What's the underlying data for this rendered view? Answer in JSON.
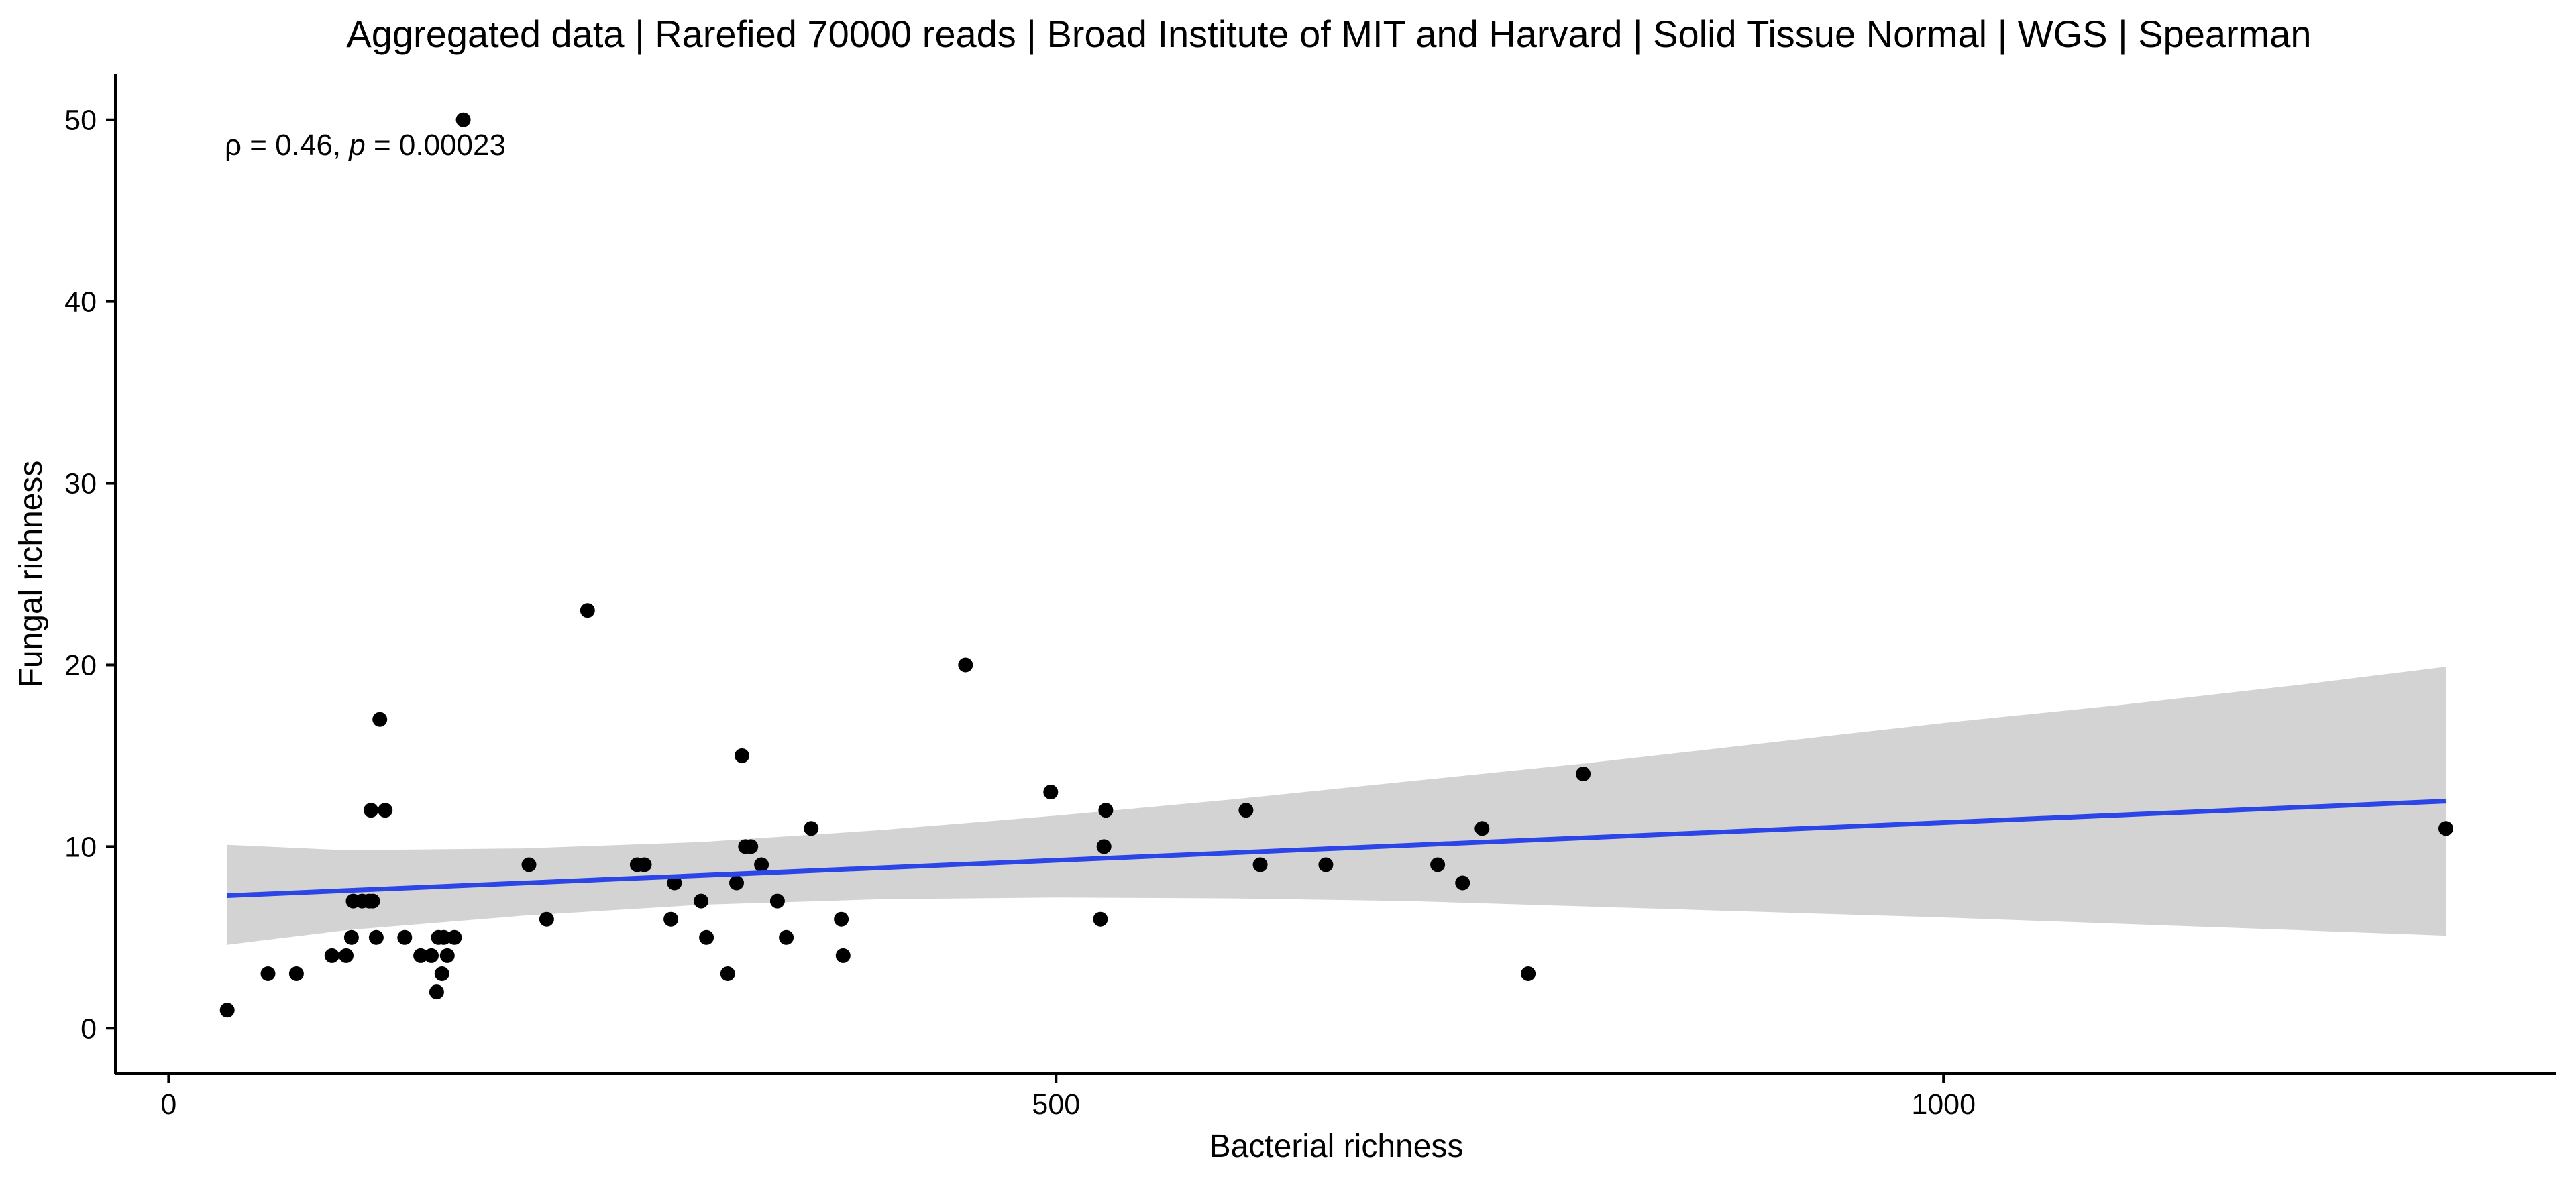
{
  "chart_data": {
    "type": "scatter",
    "title": "Aggregated data | Rarefied 70000 reads | Broad Institute of MIT and Harvard | Solid Tissue Normal | WGS | Spearman",
    "xlabel": "Bacterial richness",
    "ylabel": "Fungal richness",
    "xlim": [
      -30,
      1345
    ],
    "ylim": [
      -2.5,
      52.5
    ],
    "xticks": [
      0,
      500,
      1000
    ],
    "yticks": [
      0,
      10,
      20,
      30,
      40,
      50
    ],
    "grid": false,
    "legend": "none",
    "annotation": {
      "rho_symbol": "ρ",
      "rho_text": " = 0.46, ",
      "p_symbol": "p",
      "p_text": " = 0.00023"
    },
    "colors": {
      "points": "#000000",
      "fit_line": "#2b45e6",
      "confidence_band": "#d3d3d3"
    },
    "fit": {
      "method": "linear",
      "x": [
        33,
        1283
      ],
      "y": [
        7.3,
        12.5
      ],
      "ci_x": [
        33,
        100,
        200,
        300,
        400,
        500,
        600,
        700,
        800,
        900,
        1000,
        1100,
        1200,
        1283
      ],
      "ci_lower": [
        4.6,
        5.4,
        6.2,
        6.8,
        7.1,
        7.2,
        7.15,
        7.0,
        6.7,
        6.4,
        6.1,
        5.75,
        5.4,
        5.1
      ],
      "ci_upper": [
        10.1,
        9.8,
        9.9,
        10.25,
        10.9,
        11.7,
        12.6,
        13.6,
        14.6,
        15.7,
        16.8,
        17.8,
        18.9,
        19.9
      ]
    },
    "series": [
      {
        "x": [
          33,
          56,
          72,
          92,
          100,
          103,
          104,
          109,
          113,
          114,
          115,
          117,
          119,
          122,
          133,
          142,
          148,
          151,
          152,
          154,
          155,
          157,
          161,
          166,
          203,
          213,
          236,
          264,
          268,
          283,
          285,
          300,
          303,
          315,
          320,
          323,
          325,
          328,
          334,
          343,
          348,
          362,
          379,
          380,
          449,
          497,
          525,
          527,
          528,
          607,
          615,
          652,
          715,
          729,
          740,
          766,
          797,
          1283
        ],
        "y": [
          1,
          3,
          3,
          4,
          4,
          5,
          7,
          7,
          7,
          12,
          7,
          5,
          17,
          12,
          5,
          4,
          4,
          2,
          5,
          3,
          5,
          4,
          5,
          50,
          9,
          6,
          23,
          9,
          9,
          6,
          8,
          7,
          5,
          3,
          8,
          15,
          10,
          10,
          9,
          7,
          5,
          11,
          6,
          4,
          20,
          13,
          6,
          10,
          12,
          12,
          9,
          9,
          9,
          8,
          11,
          3,
          14,
          11
        ]
      }
    ]
  }
}
